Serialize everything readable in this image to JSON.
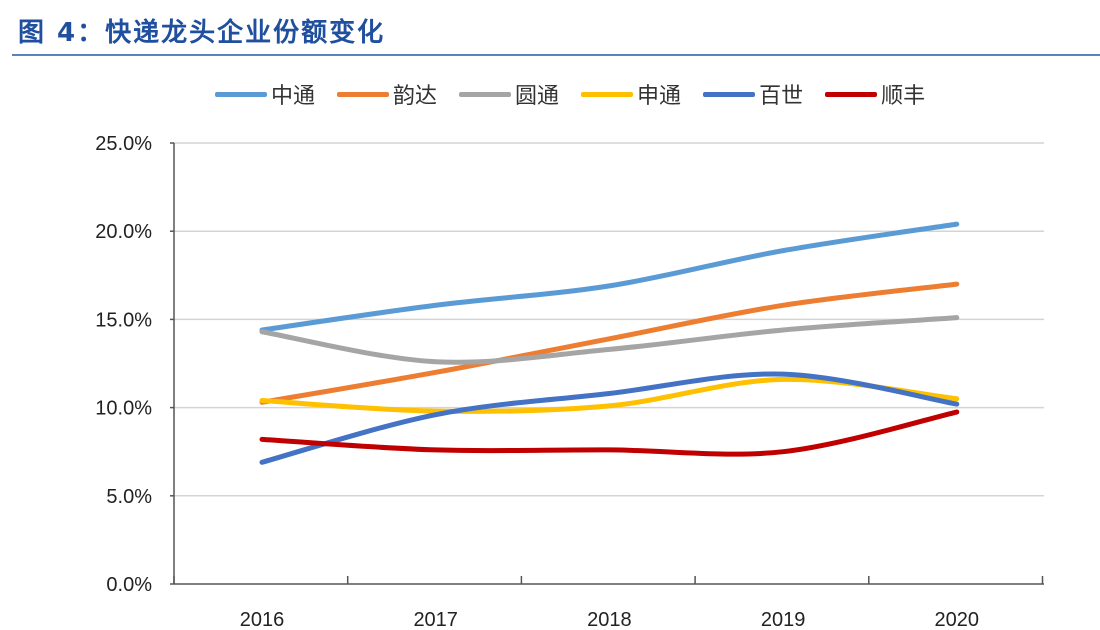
{
  "title": "图 4：快递龙头企业份额变化",
  "chart_data": {
    "type": "line",
    "title": "图 4：快递龙头企业份额变化",
    "xlabel": "",
    "ylabel": "",
    "categories": [
      "2016",
      "2017",
      "2018",
      "2019",
      "2020"
    ],
    "ylim": [
      0,
      25
    ],
    "yticks": [
      "0.0%",
      "5.0%",
      "10.0%",
      "15.0%",
      "20.0%",
      "25.0%"
    ],
    "grid": true,
    "legend": "top",
    "series": [
      {
        "name": "中通",
        "color": "#5b9bd5",
        "values": [
          14.4,
          15.8,
          16.9,
          18.9,
          20.4
        ]
      },
      {
        "name": "韵达",
        "color": "#ed7d31",
        "values": [
          10.3,
          12.0,
          13.9,
          15.8,
          17.0
        ]
      },
      {
        "name": "圆通",
        "color": "#a5a5a5",
        "values": [
          14.3,
          12.6,
          13.3,
          14.4,
          15.1
        ]
      },
      {
        "name": "申通",
        "color": "#ffc000",
        "values": [
          10.4,
          9.8,
          10.1,
          11.6,
          10.5
        ]
      },
      {
        "name": "百世",
        "color": "#4472c4",
        "values": [
          6.9,
          9.6,
          10.8,
          11.9,
          10.2
        ]
      },
      {
        "name": "顺丰",
        "color": "#c00000",
        "values": [
          8.2,
          7.6,
          7.6,
          7.5,
          9.75
        ]
      }
    ]
  }
}
